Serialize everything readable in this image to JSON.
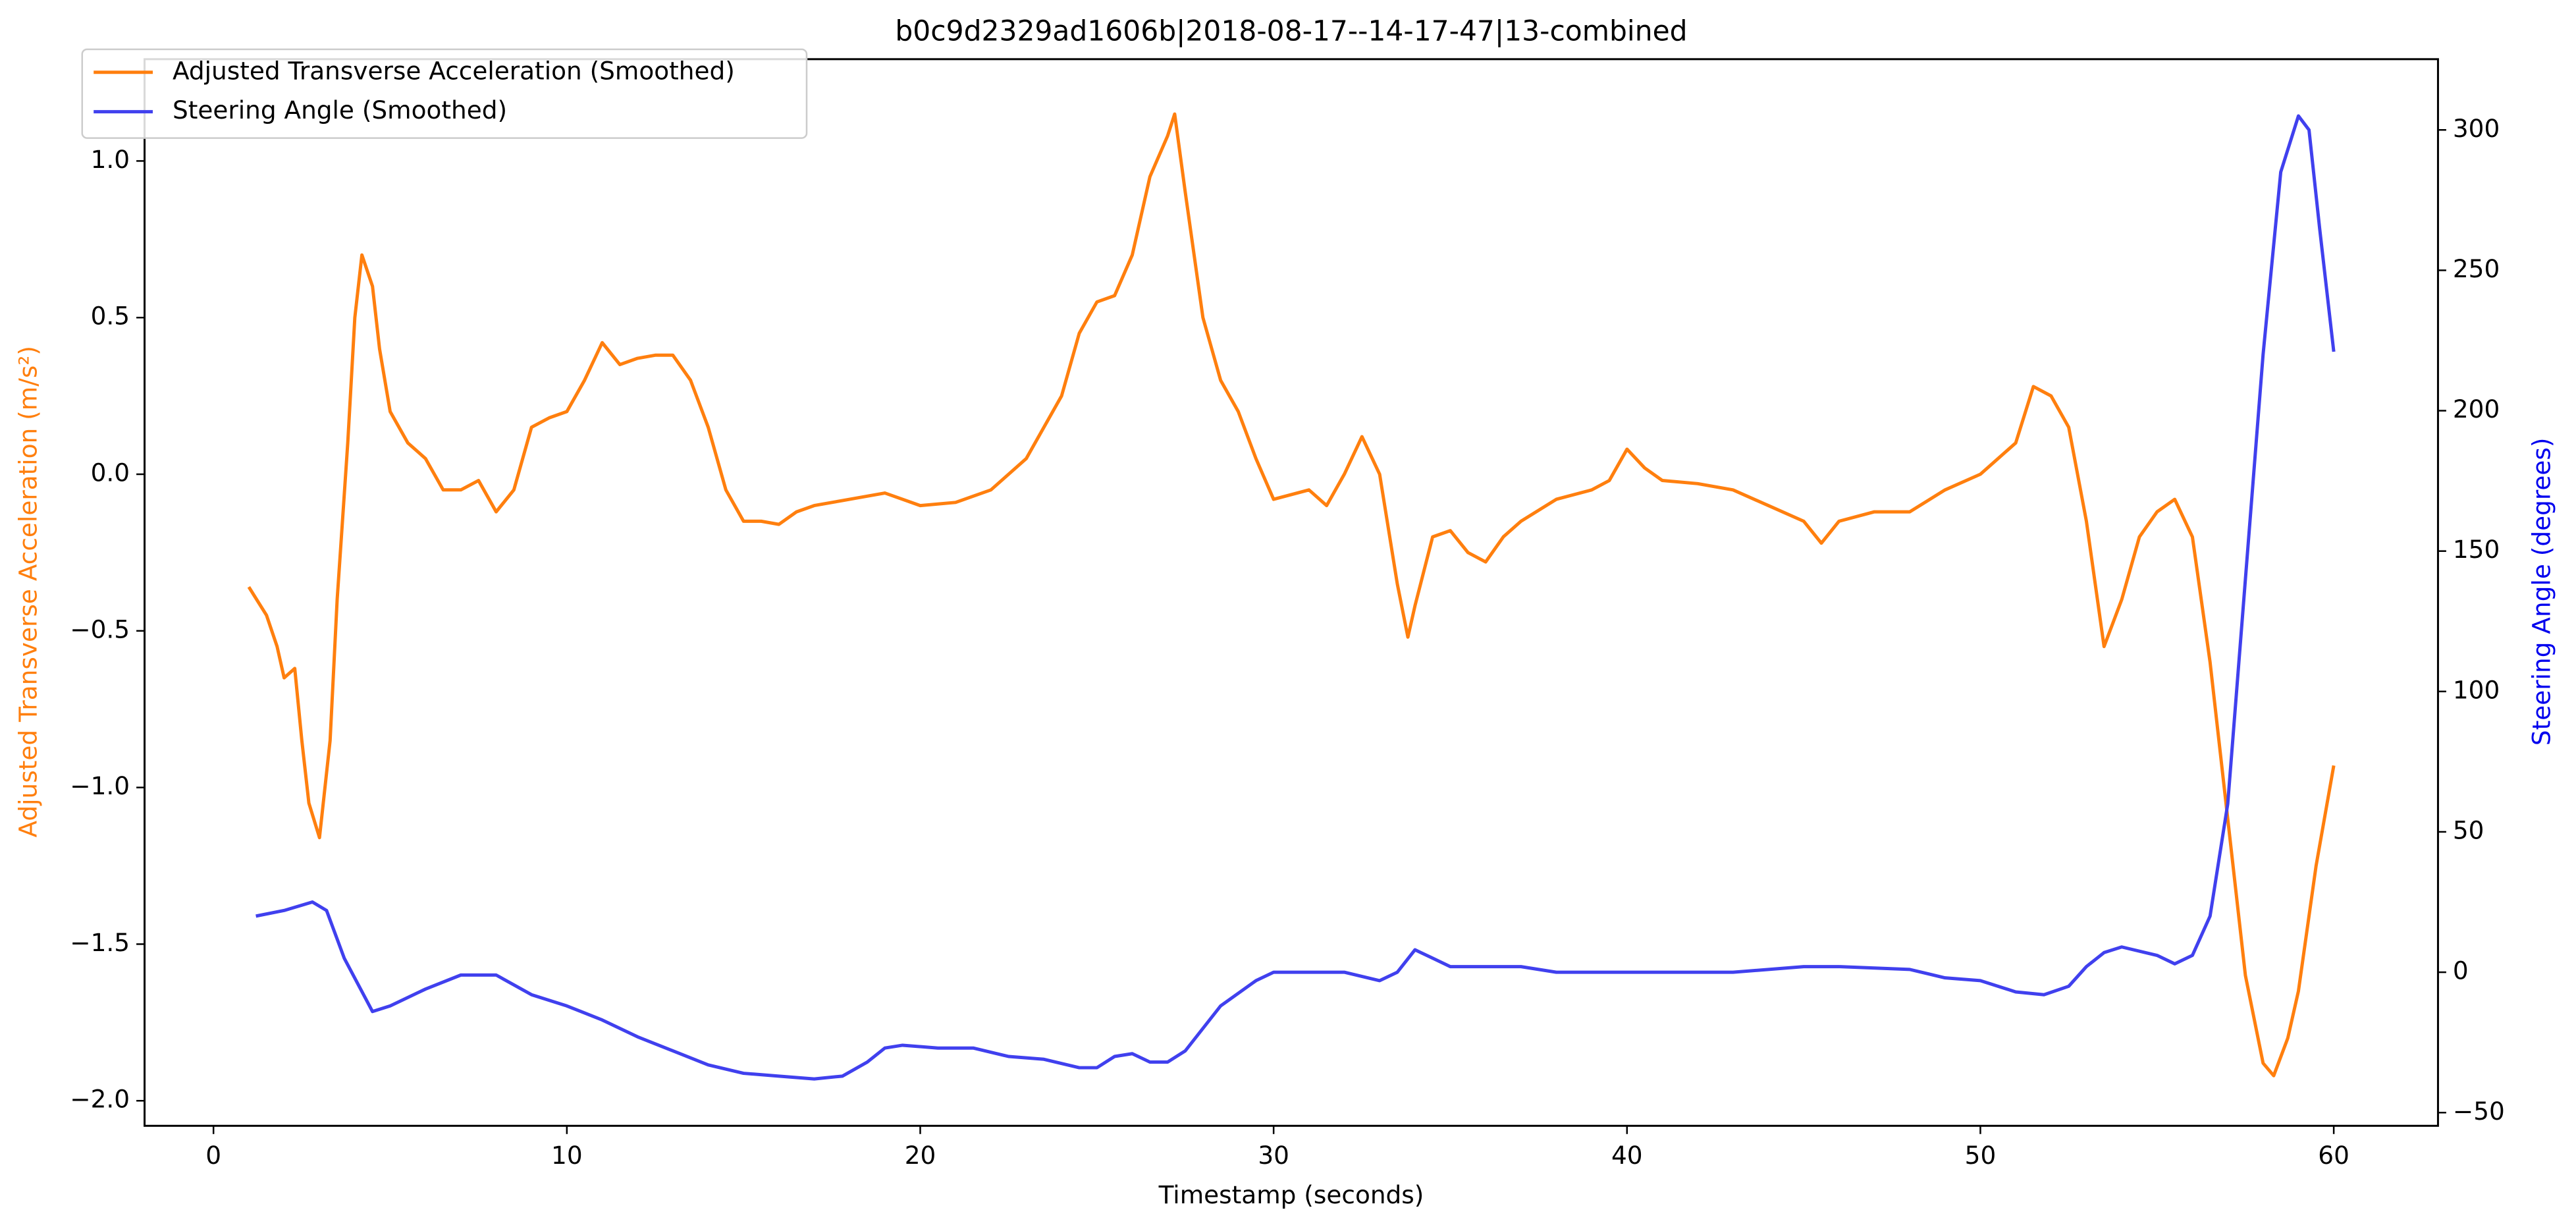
{
  "chart_data": {
    "type": "line",
    "title": "b0c9d2329ad1606b|2018-08-17--14-17-47|13-combined",
    "xlabel": "Timestamp (seconds)",
    "ylabel": "Adjusted Transverse Acceleration (m/s²)",
    "y2label": "Steering Angle (degrees)",
    "xlim": [
      -1.95,
      62.95
    ],
    "ylim": [
      -2.08,
      1.325
    ],
    "y2lim": [
      -54.7,
      325.2
    ],
    "xticks": [
      0,
      10,
      20,
      30,
      40,
      50,
      60
    ],
    "yticks": [
      {
        "value": -2.0,
        "label": "−2.0"
      },
      {
        "value": -1.5,
        "label": "−1.5"
      },
      {
        "value": -1.0,
        "label": "−1.0"
      },
      {
        "value": -0.5,
        "label": "−0.5"
      },
      {
        "value": 0.0,
        "label": "0.0"
      },
      {
        "value": 0.5,
        "label": "0.5"
      },
      {
        "value": 1.0,
        "label": "1.0"
      }
    ],
    "y2ticks": [
      {
        "value": -50,
        "label": "−50"
      },
      0,
      50,
      100,
      150,
      200,
      250,
      300
    ],
    "grid": false,
    "legend": "upper left",
    "series": [
      {
        "name": "Adjusted Transverse Acceleration (Smoothed)",
        "color": "#ff7f0e",
        "axis": "y",
        "x": [
          1.0,
          1.5,
          1.8,
          2.0,
          2.3,
          2.5,
          2.7,
          3.0,
          3.3,
          3.5,
          3.8,
          4.0,
          4.2,
          4.5,
          4.7,
          5.0,
          5.5,
          6.0,
          6.5,
          7.0,
          7.5,
          8.0,
          8.5,
          9.0,
          9.5,
          10.0,
          10.5,
          11.0,
          11.5,
          12.0,
          12.5,
          13.0,
          13.5,
          14.0,
          14.5,
          15.0,
          15.5,
          16.0,
          16.5,
          17.0,
          18.0,
          19.0,
          20.0,
          21.0,
          22.0,
          23.0,
          24.0,
          24.5,
          25.0,
          25.5,
          26.0,
          26.5,
          27.0,
          27.2,
          27.5,
          28.0,
          28.5,
          29.0,
          29.5,
          30.0,
          31.0,
          31.5,
          32.0,
          32.5,
          33.0,
          33.5,
          33.8,
          34.0,
          34.5,
          35.0,
          35.5,
          36.0,
          36.5,
          37.0,
          38.0,
          39.0,
          39.5,
          40.0,
          40.5,
          41.0,
          42.0,
          43.0,
          44.0,
          45.0,
          45.5,
          46.0,
          47.0,
          48.0,
          49.0,
          50.0,
          50.5,
          51.0,
          51.5,
          52.0,
          52.5,
          53.0,
          53.5,
          54.0,
          54.5,
          55.0,
          55.5,
          56.0,
          56.5,
          57.0,
          57.5,
          58.0,
          58.3,
          58.7,
          59.0,
          59.5,
          60.0
        ],
        "values": [
          -0.36,
          -0.45,
          -0.55,
          -0.65,
          -0.62,
          -0.85,
          -1.05,
          -1.16,
          -0.85,
          -0.4,
          0.1,
          0.5,
          0.7,
          0.6,
          0.4,
          0.2,
          0.1,
          0.05,
          -0.05,
          -0.05,
          -0.02,
          -0.12,
          -0.05,
          0.15,
          0.18,
          0.2,
          0.3,
          0.42,
          0.35,
          0.37,
          0.38,
          0.38,
          0.3,
          0.15,
          -0.05,
          -0.15,
          -0.15,
          -0.16,
          -0.12,
          -0.1,
          -0.08,
          -0.06,
          -0.1,
          -0.09,
          -0.05,
          0.05,
          0.25,
          0.45,
          0.55,
          0.57,
          0.7,
          0.95,
          1.08,
          1.15,
          0.9,
          0.5,
          0.3,
          0.2,
          0.05,
          -0.08,
          -0.05,
          -0.1,
          0.0,
          0.12,
          0.0,
          -0.35,
          -0.52,
          -0.42,
          -0.2,
          -0.18,
          -0.25,
          -0.28,
          -0.2,
          -0.15,
          -0.08,
          -0.05,
          -0.02,
          0.08,
          0.02,
          -0.02,
          -0.03,
          -0.05,
          -0.1,
          -0.15,
          -0.22,
          -0.15,
          -0.12,
          -0.12,
          -0.05,
          0.0,
          0.05,
          0.1,
          0.28,
          0.25,
          0.15,
          -0.15,
          -0.55,
          -0.4,
          -0.2,
          -0.12,
          -0.08,
          -0.2,
          -0.6,
          -1.1,
          -1.6,
          -1.88,
          -1.92,
          -1.8,
          -1.65,
          -1.25,
          -0.93
        ]
      },
      {
        "name": "Steering Angle (Smoothed)",
        "color": "#4040ee",
        "axis": "y2",
        "x": [
          1.2,
          2.0,
          2.8,
          3.2,
          3.7,
          4.5,
          5.0,
          6.0,
          7.0,
          8.0,
          9.0,
          10.0,
          11.0,
          12.0,
          13.0,
          14.0,
          15.0,
          16.0,
          17.0,
          17.8,
          18.5,
          19.0,
          19.5,
          20.5,
          21.5,
          22.5,
          23.5,
          24.5,
          25.0,
          25.5,
          26.0,
          26.5,
          27.0,
          27.5,
          28.0,
          28.5,
          29.5,
          30.0,
          31.0,
          32.0,
          33.0,
          33.5,
          34.0,
          34.5,
          35.0,
          37.0,
          38.0,
          40.0,
          42.0,
          43.0,
          45.0,
          46.0,
          48.0,
          49.0,
          50.0,
          51.0,
          51.8,
          52.5,
          53.0,
          53.5,
          54.0,
          55.0,
          55.5,
          56.0,
          56.5,
          57.0,
          57.5,
          58.0,
          58.5,
          59.0,
          59.3,
          59.6,
          60.0
        ],
        "values": [
          20,
          22,
          25,
          22,
          5,
          -14,
          -12,
          -6,
          -1,
          -1,
          -8,
          -12,
          -17,
          -23,
          -28,
          -33,
          -36,
          -37,
          -38,
          -37,
          -32,
          -27,
          -26,
          -27,
          -27,
          -30,
          -31,
          -34,
          -34,
          -30,
          -29,
          -32,
          -32,
          -28,
          -20,
          -12,
          -3,
          0,
          0,
          0,
          -3,
          0,
          8,
          5,
          2,
          2,
          0,
          0,
          0,
          0,
          2,
          2,
          1,
          -2,
          -3,
          -7,
          -8,
          -5,
          2,
          7,
          9,
          6,
          3,
          6,
          20,
          60,
          140,
          220,
          285,
          305,
          300,
          265,
          221
        ]
      }
    ]
  }
}
